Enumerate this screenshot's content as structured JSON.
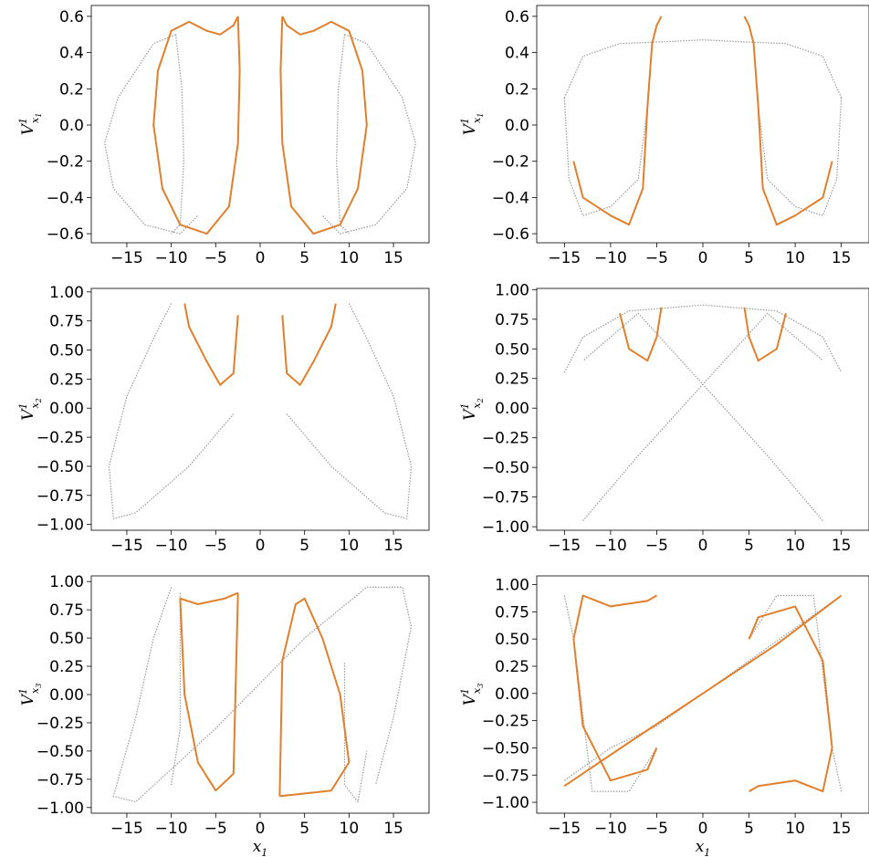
{
  "chart_data": [
    {
      "type": "scatter",
      "panel": "row1-left",
      "xlim": [
        -19,
        19
      ],
      "ylim": [
        -0.65,
        0.66
      ],
      "xticks": [
        -15,
        -10,
        -5,
        0,
        5,
        10,
        15
      ],
      "yticks": [
        -0.6,
        -0.4,
        -0.2,
        0.0,
        0.2,
        0.4,
        0.6
      ],
      "ylabel": "V",
      "ylabel_sup": "1",
      "ylabel_sub": "x1",
      "xlabel": "",
      "xlabel_sub": "",
      "colors": {
        "primary": "#e07f2c",
        "secondary": "#9a9a9a"
      }
    },
    {
      "type": "scatter",
      "panel": "row1-right",
      "xlim": [
        -18,
        18
      ],
      "ylim": [
        -0.65,
        0.66
      ],
      "xticks": [
        -15,
        -10,
        -5,
        0,
        5,
        10,
        15
      ],
      "yticks": [
        -0.6,
        -0.4,
        -0.2,
        0.0,
        0.2,
        0.4,
        0.6
      ],
      "ylabel": "V",
      "ylabel_sup": "1",
      "ylabel_sub": "x1",
      "xlabel": "",
      "xlabel_sub": "",
      "colors": {
        "primary": "#e07f2c",
        "secondary": "#9a9a9a"
      }
    },
    {
      "type": "scatter",
      "panel": "row2-left",
      "xlim": [
        -19,
        19
      ],
      "ylim": [
        -1.05,
        1.03
      ],
      "xticks": [
        -15,
        -10,
        -5,
        0,
        5,
        10,
        15
      ],
      "yticks": [
        -1.0,
        -0.75,
        -0.5,
        -0.25,
        0.0,
        0.25,
        0.5,
        0.75,
        1.0
      ],
      "ytick_labels": [
        "−1.00",
        "−0.75",
        "−0.50",
        "−0.25",
        "0.00",
        "0.25",
        "0.50",
        "0.75",
        "1.00"
      ],
      "ylabel": "V",
      "ylabel_sup": "1",
      "ylabel_sub": "x2",
      "xlabel": "",
      "xlabel_sub": "",
      "colors": {
        "primary": "#e07f2c",
        "secondary": "#9a9a9a"
      }
    },
    {
      "type": "scatter",
      "panel": "row2-right",
      "xlim": [
        -18,
        18
      ],
      "ylim": [
        -1.03,
        1.01
      ],
      "xticks": [
        -15,
        -10,
        -5,
        0,
        5,
        10,
        15
      ],
      "yticks": [
        -1.0,
        -0.75,
        -0.5,
        -0.25,
        0.0,
        0.25,
        0.5,
        0.75,
        1.0
      ],
      "ytick_labels": [
        "−1.00",
        "−0.75",
        "−0.50",
        "−0.25",
        "0.00",
        "0.25",
        "0.50",
        "0.75",
        "1.00"
      ],
      "ylabel": "V",
      "ylabel_sup": "1",
      "ylabel_sub": "x2",
      "xlabel": "",
      "xlabel_sub": "",
      "colors": {
        "primary": "#e07f2c",
        "secondary": "#9a9a9a"
      }
    },
    {
      "type": "scatter",
      "panel": "row3-left",
      "xlim": [
        -19,
        19
      ],
      "ylim": [
        -1.05,
        1.05
      ],
      "xticks": [
        -15,
        -10,
        -5,
        0,
        5,
        10,
        15
      ],
      "yticks": [
        -1.0,
        -0.75,
        -0.5,
        -0.25,
        0.0,
        0.25,
        0.5,
        0.75,
        1.0
      ],
      "ytick_labels": [
        "−1.00",
        "−0.75",
        "−0.50",
        "−0.25",
        "0.00",
        "0.25",
        "0.50",
        "0.75",
        "1.00"
      ],
      "ylabel": "V",
      "ylabel_sup": "1",
      "ylabel_sub": "x3",
      "xlabel": "x",
      "xlabel_sub": "1",
      "colors": {
        "primary": "#e07f2c",
        "secondary": "#9a9a9a"
      }
    },
    {
      "type": "scatter",
      "panel": "row3-right",
      "xlim": [
        -18,
        18
      ],
      "ylim": [
        -1.1,
        1.08
      ],
      "xticks": [
        -15,
        -10,
        -5,
        0,
        5,
        10,
        15
      ],
      "yticks": [
        -1.0,
        -0.75,
        -0.5,
        -0.25,
        0.0,
        0.25,
        0.5,
        0.75,
        1.0
      ],
      "ytick_labels": [
        "−1.00",
        "−0.75",
        "−0.50",
        "−0.25",
        "0.00",
        "0.25",
        "0.50",
        "0.75",
        "1.00"
      ],
      "ylabel": "V",
      "ylabel_sup": "1",
      "ylabel_sub": "x3",
      "xlabel": "x",
      "xlabel_sub": "1",
      "colors": {
        "primary": "#e07f2c",
        "secondary": "#9a9a9a"
      }
    }
  ]
}
